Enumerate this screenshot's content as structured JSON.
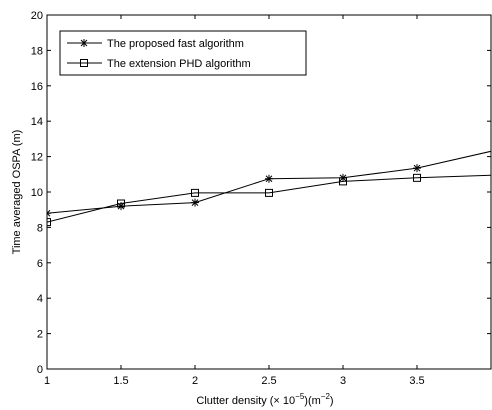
{
  "chart_data": {
    "type": "line",
    "xlabel": "Clutter density (× 10",
    "xlabel_exp": "−5",
    "xlabel_unit": ")(m",
    "xlabel_unit_exp": "−2",
    "xlabel_close": ")",
    "ylabel": "Time averaged OSPA (m)",
    "xlim": [
      1,
      4
    ],
    "ylim": [
      0,
      20
    ],
    "xticks": [
      1,
      1.5,
      2,
      2.5,
      3,
      3.5
    ],
    "xtick_labels": [
      "1",
      "1.5",
      "2",
      "2.5",
      "3",
      "3.5"
    ],
    "yticks": [
      0,
      2,
      4,
      6,
      8,
      10,
      12,
      14,
      16,
      18,
      20
    ],
    "ytick_labels": [
      "0",
      "2",
      "4",
      "6",
      "8",
      "10",
      "12",
      "14",
      "16",
      "18",
      "20"
    ],
    "grid": false,
    "legend_position": "top-left",
    "series": [
      {
        "name": "The proposed fast algorithm",
        "marker": "star",
        "color": "#000000",
        "x": [
          1,
          1.5,
          2,
          2.5,
          3,
          3.5,
          4
        ],
        "y": [
          8.8,
          9.2,
          9.4,
          10.75,
          10.8,
          11.35,
          12.3
        ]
      },
      {
        "name": "The extension PHD algorithm",
        "marker": "square",
        "color": "#000000",
        "x": [
          1,
          1.5,
          2,
          2.5,
          3,
          3.5,
          4
        ],
        "y": [
          8.3,
          9.35,
          9.95,
          9.95,
          10.6,
          10.8,
          10.95
        ]
      }
    ]
  }
}
